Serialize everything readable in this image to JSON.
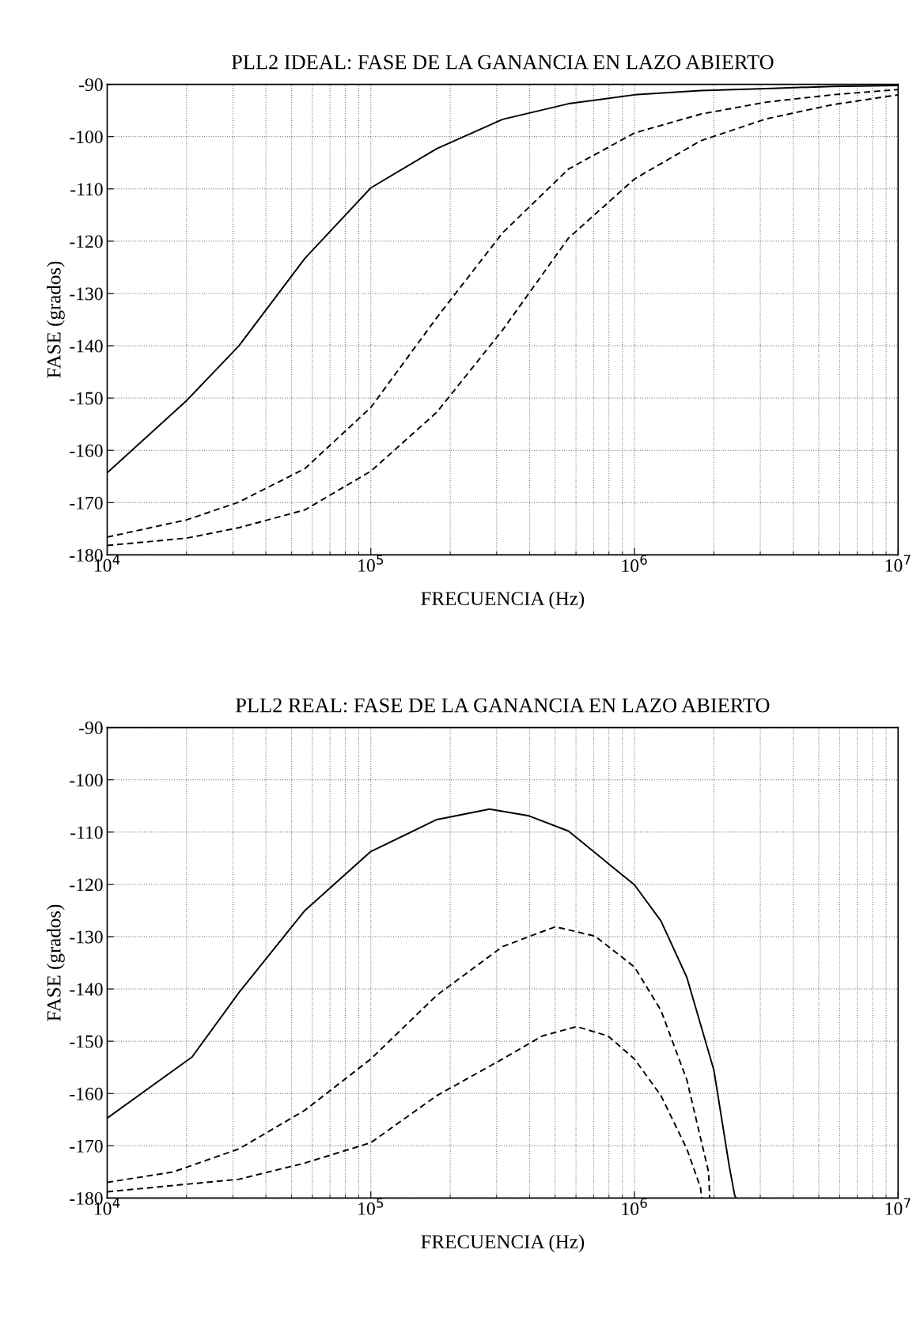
{
  "chart_data": [
    {
      "type": "line",
      "title": "PLL2 IDEAL: FASE DE LA GANANCIA EN LAZO ABIERTO",
      "xlabel": "FRECUENCIA (Hz)",
      "ylabel": "FASE (grados)",
      "log": "x",
      "grid": true,
      "legend": false,
      "xlim": [
        10000,
        10000000
      ],
      "xticks": [
        {
          "value": 10000,
          "label": "10$^{4}$"
        },
        {
          "value": 100000,
          "label": "10$^{5}$"
        },
        {
          "value": 1000000,
          "label": "10$^{6}$"
        },
        {
          "value": 10000000,
          "label": "10$^{7}$"
        }
      ],
      "ylim": [
        -180,
        -90
      ],
      "yticks": [
        -180,
        -170,
        -160,
        -150,
        -140,
        -130,
        -120,
        -110,
        -100,
        -90
      ],
      "x": [
        10000,
        20000,
        31600,
        56200,
        100000,
        178000,
        316000,
        562000,
        1000000,
        1780000,
        3160000,
        5620000,
        10000000
      ],
      "series": [
        {
          "color": "#000000",
          "line_style": "solid",
          "values": [
            -164.3,
            -150.5,
            -140,
            -123.3,
            -109.8,
            -102.3,
            -96.7,
            -93.7,
            -92,
            -91.2,
            -90.8,
            -90.4,
            -90.2
          ]
        },
        {
          "color": "#000000",
          "line_style": "dashed",
          "values": [
            -176.6,
            -173.3,
            -169.9,
            -163.5,
            -151.8,
            -134.6,
            -118.4,
            -106.2,
            -99.3,
            -95.7,
            -93.4,
            -92,
            -91
          ]
        },
        {
          "color": "#000000",
          "line_style": "dashed",
          "values": [
            -178.2,
            -176.8,
            -174.8,
            -171.4,
            -164,
            -152.7,
            -137,
            -119.4,
            -108.1,
            -100.8,
            -96.6,
            -93.9,
            -92
          ]
        }
      ]
    },
    {
      "type": "line",
      "title": "PLL2 REAL: FASE DE LA GANANCIA EN LAZO ABIERTO",
      "xlabel": "FRECUENCIA (Hz)",
      "ylabel": "FASE (grados)",
      "log": "x",
      "grid": true,
      "legend": false,
      "xlim": [
        10000,
        10000000
      ],
      "xticks": [
        {
          "value": 10000,
          "label": "10$^{4}$"
        },
        {
          "value": 100000,
          "label": "10$^{5}$"
        },
        {
          "value": 1000000,
          "label": "10$^{6}$"
        },
        {
          "value": 10000000,
          "label": "10$^{7}$"
        }
      ],
      "ylim": [
        -180,
        -90
      ],
      "yticks": [
        -180,
        -170,
        -160,
        -150,
        -140,
        -130,
        -120,
        -110,
        -100,
        -90
      ],
      "series": [
        {
          "color": "#000000",
          "line_style": "solid",
          "x": [
            10000,
            21000,
            31600,
            56200,
            100000,
            178000,
            282000,
            398000,
            562000,
            1000000,
            1260000,
            1580000,
            2000000,
            2290000,
            2400000,
            2430000
          ],
          "values": [
            -164.7,
            -153,
            -140.7,
            -125,
            -113.7,
            -107.6,
            -105.6,
            -106.9,
            -109.8,
            -120.1,
            -127,
            -137.8,
            -155.5,
            -174,
            -179.5,
            -180
          ]
        },
        {
          "color": "#000000",
          "line_style": "dashed",
          "x": [
            10000,
            17800,
            31600,
            56200,
            100000,
            178000,
            316000,
            501000,
            708000,
            1000000,
            1260000,
            1580000,
            1910000,
            1930000
          ],
          "values": [
            -177,
            -175,
            -170.6,
            -163.2,
            -153.4,
            -141.2,
            -131.9,
            -128.1,
            -129.9,
            -135.8,
            -144.1,
            -157.4,
            -175,
            -180
          ]
        },
        {
          "color": "#000000",
          "line_style": "dashed",
          "x": [
            10000,
            31600,
            56200,
            100000,
            178000,
            316000,
            447000,
            603000,
            794000,
            1000000,
            1260000,
            1580000,
            1780000,
            1800000
          ],
          "values": [
            -178.8,
            -176.4,
            -173.3,
            -169.4,
            -160.4,
            -153.4,
            -149,
            -147.2,
            -149,
            -153.4,
            -160.4,
            -170.6,
            -178,
            -180
          ]
        }
      ]
    }
  ]
}
